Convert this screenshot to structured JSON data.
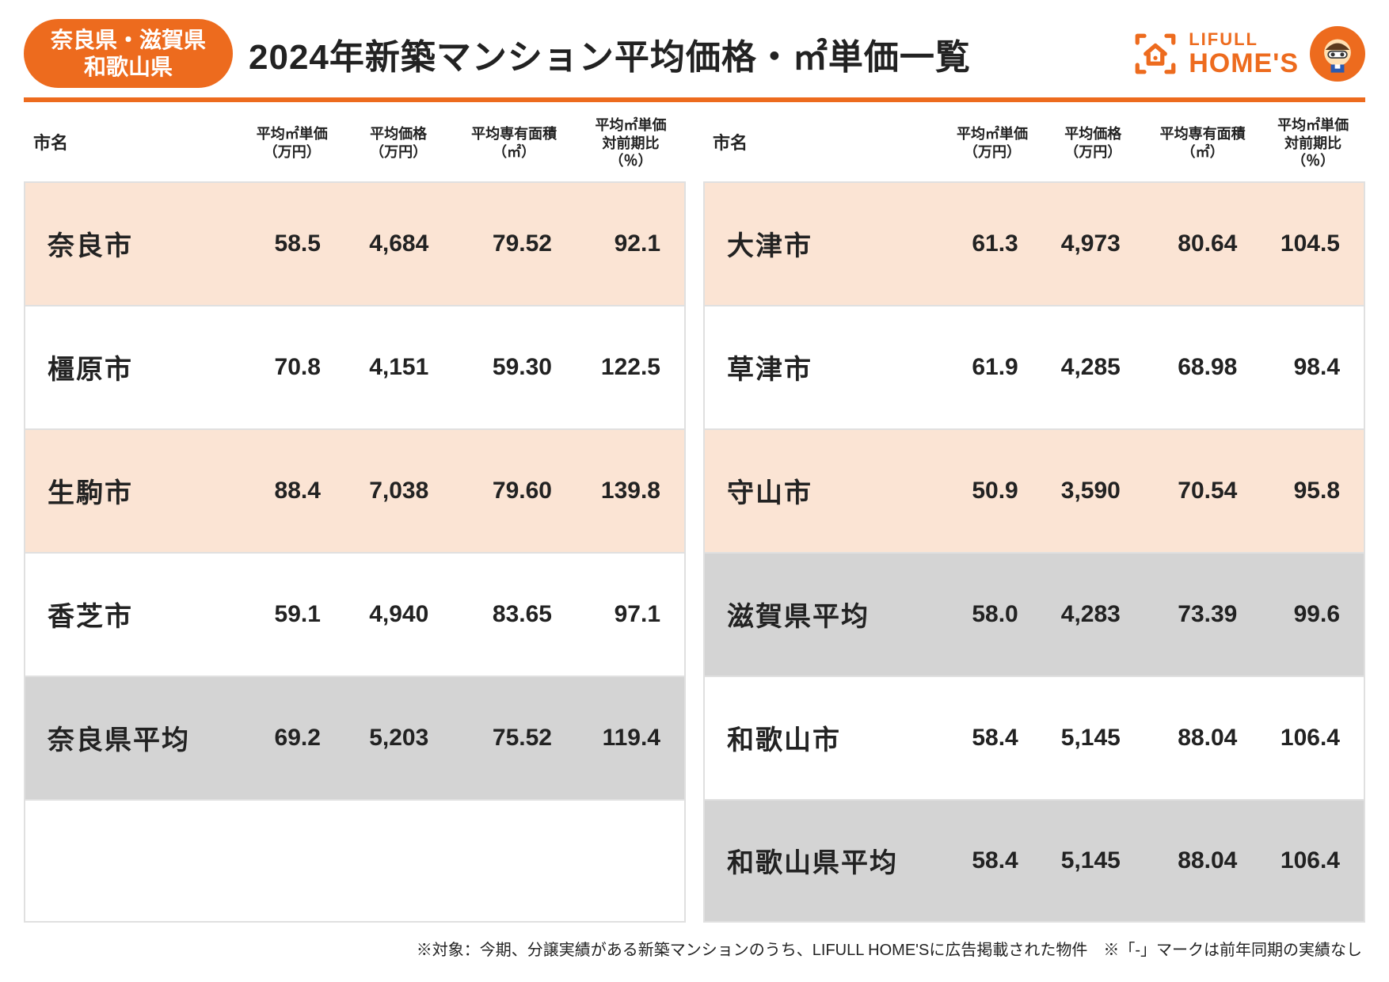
{
  "badge": {
    "line1": "奈良県・滋賀県",
    "line2": "和歌山県"
  },
  "title": "2024年新築マンション平均価格・㎡単価一覧",
  "brand": {
    "line1": "LIFULL",
    "line2": "HOME'S"
  },
  "columns": {
    "city": "市名",
    "unit": "平均㎡単価\n（万円）",
    "price": "平均価格\n（万円）",
    "area": "平均専有面積\n（㎡）",
    "yoy": "平均㎡単価\n対前期比\n（％）"
  },
  "leftRows": [
    {
      "style": "peach",
      "city": "奈良市",
      "unit": "58.5",
      "price": "4,684",
      "area": "79.52",
      "yoy": "92.1"
    },
    {
      "style": "white",
      "city": "橿原市",
      "unit": "70.8",
      "price": "4,151",
      "area": "59.30",
      "yoy": "122.5"
    },
    {
      "style": "peach",
      "city": "生駒市",
      "unit": "88.4",
      "price": "7,038",
      "area": "79.60",
      "yoy": "139.8"
    },
    {
      "style": "white",
      "city": "香芝市",
      "unit": "59.1",
      "price": "4,940",
      "area": "83.65",
      "yoy": "97.1"
    },
    {
      "style": "gray",
      "city": "奈良県平均",
      "unit": "69.2",
      "price": "5,203",
      "area": "75.52",
      "yoy": "119.4"
    },
    {
      "style": "white",
      "city": "",
      "unit": "",
      "price": "",
      "area": "",
      "yoy": ""
    }
  ],
  "rightRows": [
    {
      "style": "peach",
      "city": "大津市",
      "unit": "61.3",
      "price": "4,973",
      "area": "80.64",
      "yoy": "104.5"
    },
    {
      "style": "white",
      "city": "草津市",
      "unit": "61.9",
      "price": "4,285",
      "area": "68.98",
      "yoy": "98.4"
    },
    {
      "style": "peach",
      "city": "守山市",
      "unit": "50.9",
      "price": "3,590",
      "area": "70.54",
      "yoy": "95.8"
    },
    {
      "style": "gray",
      "city": "滋賀県平均",
      "unit": "58.0",
      "price": "4,283",
      "area": "73.39",
      "yoy": "99.6"
    },
    {
      "style": "white",
      "city": "和歌山市",
      "unit": "58.4",
      "price": "5,145",
      "area": "88.04",
      "yoy": "106.4"
    },
    {
      "style": "gray",
      "city": "和歌山県平均",
      "unit": "58.4",
      "price": "5,145",
      "area": "88.04",
      "yoy": "106.4"
    }
  ],
  "footnote": "※対象：今期、分譲実績がある新築マンションのうち、LIFULL HOME'Sに広告掲載された物件　※「-」マークは前年同期の実績なし",
  "colors": {
    "accent": "#ed6b1e",
    "peach": "#fbe4d4",
    "gray": "#d4d4d4",
    "border": "#e0e0e0",
    "text": "#222222"
  }
}
